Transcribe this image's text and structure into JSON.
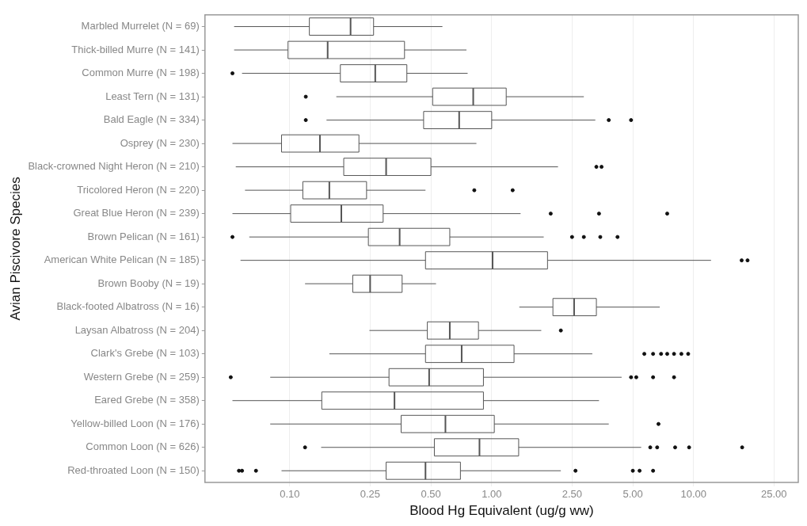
{
  "chart_data": {
    "type": "box",
    "orientation": "horizontal",
    "xlabel": "Blood Hg Equivalent (ug/g ww)",
    "ylabel": "Avian Piscivore Species",
    "log": "x",
    "grid": "x",
    "color": "#555555",
    "categories": [
      "Marbled Murrelet (N = 69)",
      "Thick-billed Murre (N = 141)",
      "Common Murre (N = 198)",
      "Least Tern (N = 131)",
      "Bald Eagle (N = 334)",
      "Osprey (N = 230)",
      "Black-crowned Night Heron (N = 210)",
      "Tricolored Heron (N = 220)",
      "Great Blue Heron (N = 239)",
      "Brown Pelican (N = 161)",
      "American White Pelican (N = 185)",
      "Brown Booby (N = 19)",
      "Black-footed Albatross (N = 16)",
      "Laysan Albatross (N = 204)",
      "Clark's Grebe (N = 103)",
      "Western Grebe (N = 259)",
      "Eared Grebe (N = 358)",
      "Yellow-billed Loon (N = 176)",
      "Common Loon (N = 626)",
      "Red-throated Loon (N = 150)"
    ],
    "boxes": [
      {
        "low": 0.053,
        "q1": 0.125,
        "median": 0.2,
        "q3": 0.26,
        "high": 0.57
      },
      {
        "low": 0.053,
        "q1": 0.098,
        "median": 0.154,
        "q3": 0.37,
        "high": 0.75
      },
      {
        "low": 0.058,
        "q1": 0.178,
        "median": 0.265,
        "q3": 0.38,
        "high": 0.76,
        "outliers": [
          0.052
        ]
      },
      {
        "low": 0.17,
        "q1": 0.51,
        "median": 0.81,
        "q3": 1.18,
        "high": 2.86,
        "outliers": [
          0.12
        ]
      },
      {
        "low": 0.152,
        "q1": 0.46,
        "median": 0.69,
        "q3": 1.0,
        "high": 3.26,
        "outliers": [
          0.12,
          3.8,
          4.9
        ]
      },
      {
        "low": 0.052,
        "q1": 0.091,
        "median": 0.141,
        "q3": 0.22,
        "high": 0.84
      },
      {
        "low": 0.054,
        "q1": 0.185,
        "median": 0.3,
        "q3": 0.5,
        "high": 2.13,
        "outliers": [
          3.3,
          3.5
        ]
      },
      {
        "low": 0.06,
        "q1": 0.116,
        "median": 0.157,
        "q3": 0.24,
        "high": 0.47,
        "outliers": [
          0.82,
          1.27
        ]
      },
      {
        "low": 0.052,
        "q1": 0.101,
        "median": 0.18,
        "q3": 0.29,
        "high": 1.39,
        "outliers": [
          1.96,
          3.4,
          7.4
        ]
      },
      {
        "low": 0.063,
        "q1": 0.245,
        "median": 0.35,
        "q3": 0.62,
        "high": 1.81,
        "outliers": [
          0.052,
          2.5,
          2.86,
          3.45,
          4.2
        ]
      },
      {
        "low": 0.057,
        "q1": 0.47,
        "median": 1.01,
        "q3": 1.89,
        "high": 12.2,
        "outliers": [
          17.3,
          18.5
        ]
      },
      {
        "low": 0.119,
        "q1": 0.205,
        "median": 0.25,
        "q3": 0.36,
        "high": 0.53
      },
      {
        "low": 1.37,
        "q1": 2.01,
        "median": 2.56,
        "q3": 3.3,
        "high": 6.8
      },
      {
        "low": 0.248,
        "q1": 0.48,
        "median": 0.62,
        "q3": 0.86,
        "high": 1.76,
        "outliers": [
          2.2
        ]
      },
      {
        "low": 0.157,
        "q1": 0.47,
        "median": 0.71,
        "q3": 1.29,
        "high": 3.15,
        "outliers": [
          5.7,
          6.3,
          6.9,
          7.4,
          8.0,
          8.7,
          9.4
        ]
      },
      {
        "low": 0.08,
        "q1": 0.31,
        "median": 0.49,
        "q3": 0.91,
        "high": 4.4,
        "outliers": [
          0.051,
          4.9,
          5.2,
          6.3,
          8.0
        ]
      },
      {
        "low": 0.052,
        "q1": 0.144,
        "median": 0.33,
        "q3": 0.91,
        "high": 3.4
      },
      {
        "low": 0.08,
        "q1": 0.356,
        "median": 0.59,
        "q3": 1.03,
        "high": 3.8,
        "outliers": [
          6.7
        ]
      },
      {
        "low": 0.143,
        "q1": 0.52,
        "median": 0.87,
        "q3": 1.36,
        "high": 5.5,
        "outliers": [
          0.119,
          6.1,
          6.6,
          8.1,
          9.5,
          17.4
        ]
      },
      {
        "low": 0.091,
        "q1": 0.3,
        "median": 0.47,
        "q3": 0.7,
        "high": 2.2,
        "outliers": [
          0.056,
          0.058,
          0.068,
          2.6,
          5.0,
          5.4,
          6.3
        ]
      }
    ],
    "xlim": [
      0.038,
      33
    ],
    "xticks": [
      {
        "value": 0.1,
        "label": "0.10"
      },
      {
        "value": 0.25,
        "label": "0.25"
      },
      {
        "value": 0.5,
        "label": "0.50"
      },
      {
        "value": 1,
        "label": "1.00"
      },
      {
        "value": 2.5,
        "label": "2.50"
      },
      {
        "value": 5,
        "label": "5.00"
      },
      {
        "value": 10,
        "label": "10.00"
      },
      {
        "value": 25,
        "label": "25.00"
      }
    ]
  }
}
